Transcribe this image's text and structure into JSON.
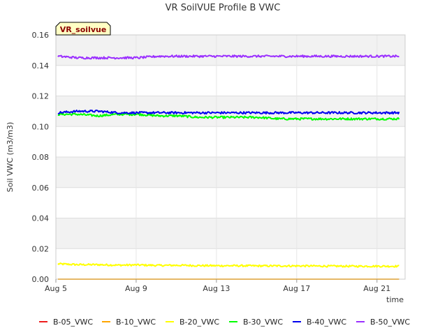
{
  "chart_data": {
    "type": "line",
    "title": "VR SoilVUE Profile B VWC",
    "badge": "VR_soilvue",
    "xlabel": "time",
    "ylabel": "Soil VWC (m3/m3)",
    "ylim": [
      0,
      0.16
    ],
    "yticks": [
      "0.00",
      "0.02",
      "0.04",
      "0.06",
      "0.08",
      "0.10",
      "0.12",
      "0.14",
      "0.16"
    ],
    "xlim": [
      0,
      17.4
    ],
    "xticks": [
      {
        "day": 0,
        "label": "Aug 5"
      },
      {
        "day": 4,
        "label": "Aug 9"
      },
      {
        "day": 8,
        "label": "Aug 13"
      },
      {
        "day": 12,
        "label": "Aug 17"
      },
      {
        "day": 16,
        "label": "Aug 21"
      }
    ],
    "x_range": [
      0.1,
      17.1
    ],
    "grid": true,
    "legend_position": "bottom",
    "series": [
      {
        "name": "B-05_VWC",
        "color": "#ee1c1c",
        "values": []
      },
      {
        "name": "B-10_VWC",
        "color": "#ffa500",
        "values": [
          0.0,
          0.0,
          0.0,
          0.0,
          0.0,
          0.0,
          0.0,
          0.0,
          0.0,
          0.0,
          0.0,
          0.0,
          0.0,
          0.0,
          0.0,
          0.0,
          0.0,
          0.0
        ]
      },
      {
        "name": "B-20_VWC",
        "color": "#ffff00",
        "values": [
          0.01,
          0.0095,
          0.0095,
          0.0092,
          0.0093,
          0.009,
          0.0091,
          0.0089,
          0.0088,
          0.0088,
          0.0087,
          0.0087,
          0.0087,
          0.0086,
          0.0085,
          0.0085,
          0.0085,
          0.0085
        ]
      },
      {
        "name": "B-30_VWC",
        "color": "#00ff00",
        "values": [
          0.108,
          0.108,
          0.107,
          0.108,
          0.108,
          0.107,
          0.107,
          0.106,
          0.106,
          0.106,
          0.106,
          0.105,
          0.105,
          0.105,
          0.105,
          0.105,
          0.105,
          0.105
        ]
      },
      {
        "name": "B-40_VWC",
        "color": "#0000ee",
        "values": [
          0.109,
          0.11,
          0.11,
          0.109,
          0.109,
          0.109,
          0.109,
          0.109,
          0.109,
          0.109,
          0.109,
          0.109,
          0.109,
          0.109,
          0.109,
          0.109,
          0.109,
          0.109
        ]
      },
      {
        "name": "B-50_VWC",
        "color": "#9b30ff",
        "values": [
          0.146,
          0.145,
          0.145,
          0.145,
          0.145,
          0.146,
          0.146,
          0.146,
          0.146,
          0.146,
          0.146,
          0.146,
          0.146,
          0.146,
          0.146,
          0.146,
          0.146,
          0.146
        ]
      }
    ]
  }
}
